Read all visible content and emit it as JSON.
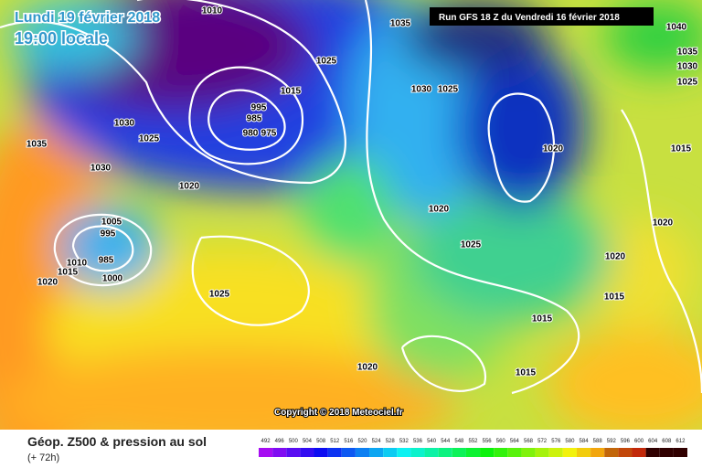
{
  "header": {
    "date": "Lundi 19 février 2018",
    "time": "19:00 locale",
    "run": "Run GFS 18 Z du Vendredi 16 février 2018"
  },
  "map": {
    "copyright": "Copyright © 2018 Meteociel.fr",
    "isobar_labels": [
      1010,
      1035,
      1025,
      1015,
      1030,
      1025,
      1035,
      1030,
      1020,
      995,
      985,
      980,
      975,
      1005,
      995,
      985,
      1010,
      1015,
      1000,
      1020,
      1025,
      1030,
      1025,
      1020,
      1020,
      1025,
      1015,
      1020,
      1020,
      1015,
      1015,
      1015,
      1020,
      1035,
      1030,
      1025,
      1040
    ]
  },
  "footer": {
    "title": "Géop. Z500 & pression au sol",
    "lead": "(+ 72h)",
    "scale": [
      492,
      496,
      500,
      504,
      508,
      512,
      516,
      520,
      524,
      528,
      532,
      536,
      540,
      544,
      548,
      552,
      556,
      560,
      564,
      568,
      572,
      576,
      580,
      584,
      588,
      592,
      596,
      600,
      604,
      608,
      612
    ]
  }
}
